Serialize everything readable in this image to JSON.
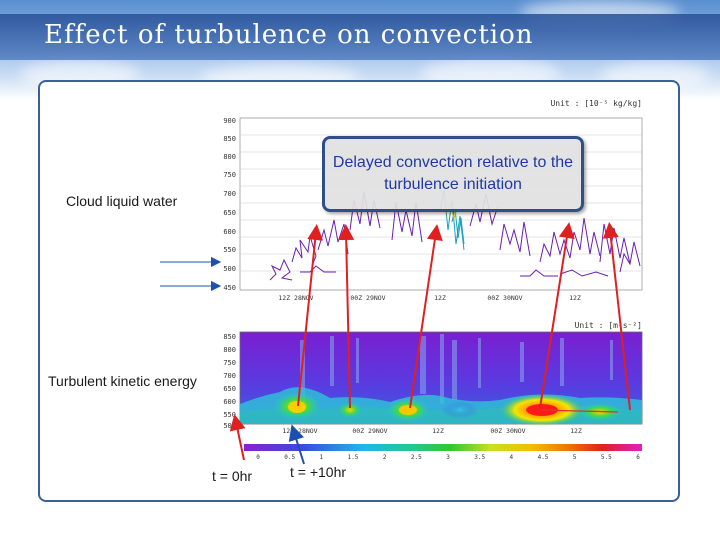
{
  "slide": {
    "title": "Effect of turbulence on convection",
    "callout": "Delayed convection relative to the turbulence initiation",
    "labels": {
      "cloud_liquid_water": "Cloud liquid water",
      "turbulent_kinetic_energy": "Turbulent kinetic energy",
      "t_zero": "t = 0hr",
      "t_plus10": "t = +10hr"
    },
    "top_panel": {
      "unit": "Unit : [10⁻⁵ kg/kg]",
      "y_ticks": [
        "900",
        "850",
        "800",
        "750",
        "700",
        "650",
        "600",
        "550",
        "500",
        "450"
      ]
    },
    "bottom_panel": {
      "unit": "Unit : [m²s⁻²]",
      "y_ticks": [
        "850",
        "800",
        "750",
        "700",
        "650",
        "600",
        "550",
        "500"
      ],
      "colorbar_ticks": [
        "0",
        "0.5",
        "1",
        "1.5",
        "2",
        "2.5",
        "3",
        "3.5",
        "4",
        "4.5",
        "5",
        "5.5",
        "6"
      ]
    },
    "x_ticks": [
      "12Z 28NOV",
      "00Z 29NOV",
      "12Z",
      "00Z 30NOV",
      "12Z"
    ],
    "colors": {
      "title_bar": "#3e6aae",
      "callout_border": "#2f4f86",
      "callout_text": "#1f3aa0",
      "arrow_red": "#e02020",
      "arrow_blue": "#1e4fb0",
      "contour_purple": "#6a1fb0"
    }
  }
}
